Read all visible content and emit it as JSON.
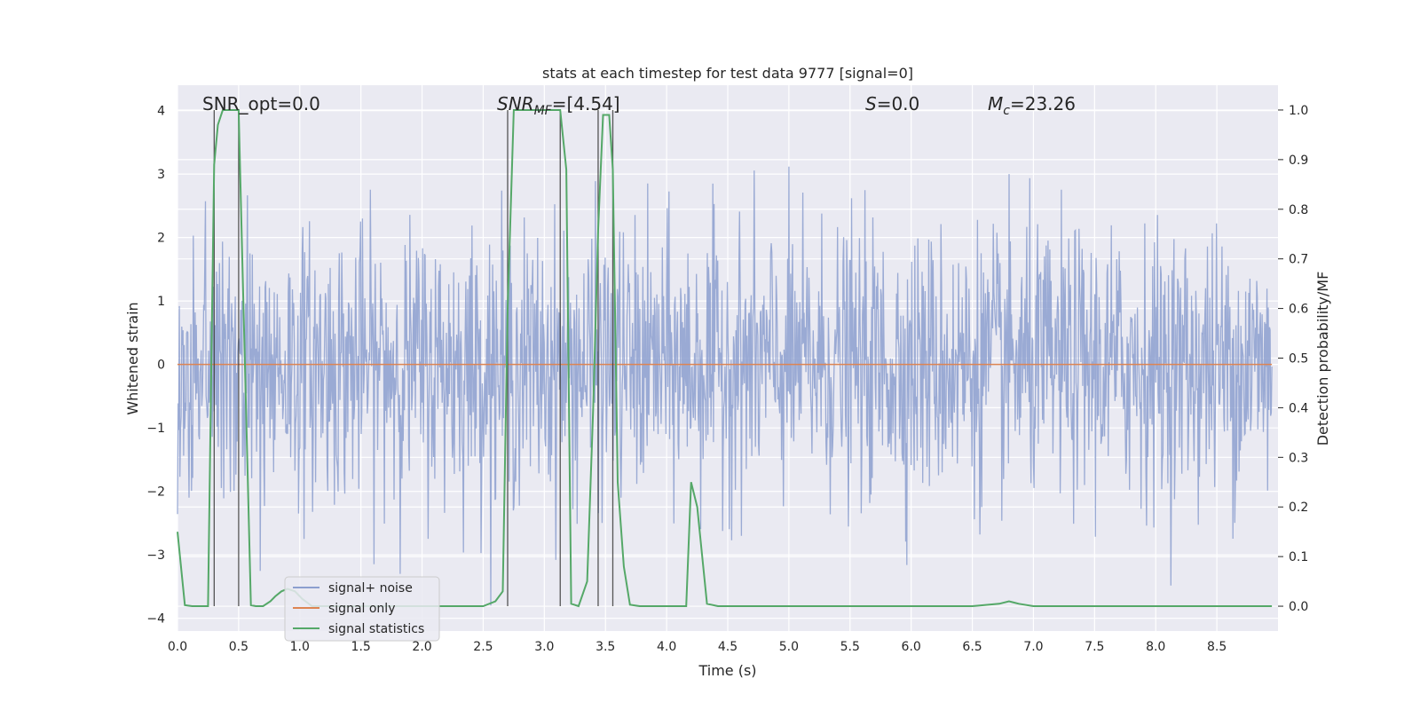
{
  "chart_data": {
    "type": "line",
    "title": "stats at each timestep for test data 9777 [signal=0]",
    "xlabel": "Time (s)",
    "ylabel": "Whitened strain",
    "ylabel_right": "Detection probability/MF",
    "xlim": [
      0.0,
      9.0
    ],
    "ylim": [
      -4.2,
      4.4
    ],
    "ylim_right": [
      -0.05,
      1.05
    ],
    "x_ticks": [
      "0.0",
      "0.5",
      "1.0",
      "1.5",
      "2.0",
      "2.5",
      "3.0",
      "3.5",
      "4.0",
      "4.5",
      "5.0",
      "5.5",
      "6.0",
      "6.5",
      "7.0",
      "7.5",
      "8.0",
      "8.5"
    ],
    "y_ticks": [
      "4",
      "3",
      "2",
      "1",
      "0",
      "−1",
      "−2",
      "−3",
      "−4"
    ],
    "y_right_ticks": [
      "1.0",
      "0.9",
      "0.8",
      "0.7",
      "0.6",
      "0.5",
      "0.4",
      "0.3",
      "0.2",
      "0.1",
      "0.0"
    ],
    "grid": true,
    "legend_position": "lower-left",
    "annotations": {
      "snr_opt": "SNR_opt=0.0",
      "snr_mf_label": "SNR",
      "snr_mf_sub": "MF",
      "snr_mf_value": "=[4.54]",
      "s_label": "S",
      "s_value": "=0.0",
      "mc_label": "M",
      "mc_sub": "c",
      "mc_value": "=23.26"
    },
    "vertical_lines_x": [
      0.3,
      0.5,
      2.7,
      3.13,
      3.44,
      3.56
    ],
    "series": [
      {
        "name": "signal+ noise",
        "color": "#8c9fcf",
        "noise_envelope": {
          "typical_range": [
            -2.5,
            2.8
          ],
          "max": 4.0,
          "min": -3.8
        }
      },
      {
        "name": "signal only",
        "color": "#dd8452",
        "values_constant": 0.0
      },
      {
        "name": "signal statistics",
        "color": "#55a868",
        "x": [
          0.0,
          0.06,
          0.12,
          0.25,
          0.28,
          0.3,
          0.33,
          0.37,
          0.42,
          0.48,
          0.5,
          0.53,
          0.56,
          0.6,
          0.64,
          0.7,
          0.76,
          0.8,
          0.85,
          0.9,
          0.96,
          1.02,
          1.1,
          1.5,
          2.0,
          2.5,
          2.6,
          2.66,
          2.7,
          2.75,
          2.8,
          3.1,
          3.13,
          3.18,
          3.22,
          3.28,
          3.35,
          3.4,
          3.44,
          3.48,
          3.53,
          3.56,
          3.6,
          3.65,
          3.7,
          3.78,
          3.85,
          3.95,
          4.1,
          4.16,
          4.2,
          4.25,
          4.33,
          4.42,
          5.5,
          6.0,
          6.5,
          6.72,
          6.8,
          6.88,
          7.0,
          8.0,
          8.95
        ],
        "values": [
          0.15,
          0.002,
          0.0,
          0.0,
          0.55,
          0.89,
          0.97,
          1.0,
          1.0,
          1.0,
          1.0,
          0.7,
          0.4,
          0.002,
          0.0,
          0.0,
          0.01,
          0.02,
          0.03,
          0.035,
          0.03,
          0.015,
          0.0,
          0.0,
          0.0,
          0.0,
          0.01,
          0.03,
          0.6,
          1.0,
          1.0,
          1.0,
          1.0,
          0.88,
          0.005,
          0.0,
          0.05,
          0.4,
          0.76,
          0.99,
          0.99,
          0.88,
          0.25,
          0.08,
          0.003,
          0.0,
          0.0,
          0.0,
          0.0,
          0.0,
          0.25,
          0.2,
          0.005,
          0.0,
          0.0,
          0.0,
          0.0,
          0.005,
          0.01,
          0.005,
          0.0,
          0.0,
          0.0
        ]
      }
    ]
  }
}
